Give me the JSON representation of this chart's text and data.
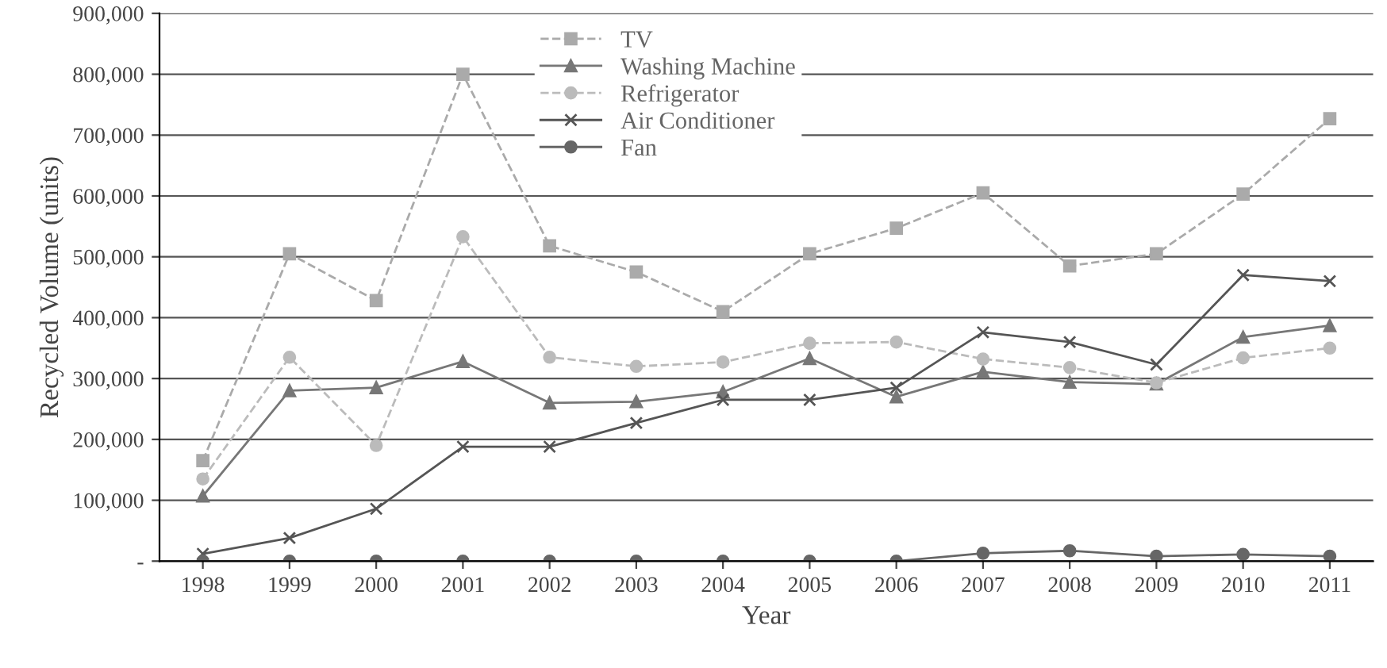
{
  "chart_data": {
    "type": "line",
    "xlabel": "Year",
    "ylabel": "Recycled Volume (units)",
    "categories": [
      "1998",
      "1999",
      "2000",
      "2001",
      "2002",
      "2003",
      "2004",
      "2005",
      "2006",
      "2007",
      "2008",
      "2009",
      "2010",
      "2011"
    ],
    "series": [
      {
        "name": "TV",
        "color": "#aaaaaa",
        "marker": "square",
        "line_style": "dashed",
        "values": [
          165000,
          505000,
          428000,
          800000,
          518000,
          475000,
          410000,
          505000,
          547000,
          605000,
          485000,
          505000,
          603000,
          727000
        ]
      },
      {
        "name": "Washing Machine",
        "color": "#777777",
        "marker": "triangle",
        "line_style": "solid",
        "values": [
          107000,
          280000,
          285000,
          328000,
          260000,
          262000,
          278000,
          333000,
          270000,
          311000,
          294000,
          291000,
          368000,
          387000
        ]
      },
      {
        "name": "Refrigerator",
        "color": "#bbbbbb",
        "marker": "circle",
        "line_style": "dashed",
        "values": [
          135000,
          335000,
          190000,
          533000,
          335000,
          320000,
          327000,
          358000,
          360000,
          332000,
          318000,
          293000,
          334000,
          350000
        ]
      },
      {
        "name": "Air Conditioner",
        "color": "#555555",
        "marker": "cross",
        "line_style": "solid",
        "values": [
          12000,
          38000,
          86000,
          188000,
          188000,
          227000,
          265000,
          265000,
          285000,
          376000,
          360000,
          323000,
          470000,
          460000
        ]
      },
      {
        "name": "Fan",
        "color": "#666666",
        "marker": "circle",
        "line_style": "solid",
        "values": [
          0,
          0,
          0,
          0,
          0,
          0,
          0,
          0,
          0,
          13000,
          17000,
          8000,
          11000,
          8000
        ]
      }
    ],
    "ylim": [
      0,
      900000
    ],
    "yticks": [
      {
        "value": 0,
        "label": "-"
      },
      {
        "value": 100000,
        "label": "100,000"
      },
      {
        "value": 200000,
        "label": "200,000"
      },
      {
        "value": 300000,
        "label": "300,000"
      },
      {
        "value": 400000,
        "label": "400,000"
      },
      {
        "value": 500000,
        "label": "500,000"
      },
      {
        "value": 600000,
        "label": "600,000"
      },
      {
        "value": 700000,
        "label": "700,000"
      },
      {
        "value": 800000,
        "label": "800,000"
      },
      {
        "value": 900000,
        "label": "900,000"
      }
    ],
    "grid": "y",
    "legend": "top"
  }
}
